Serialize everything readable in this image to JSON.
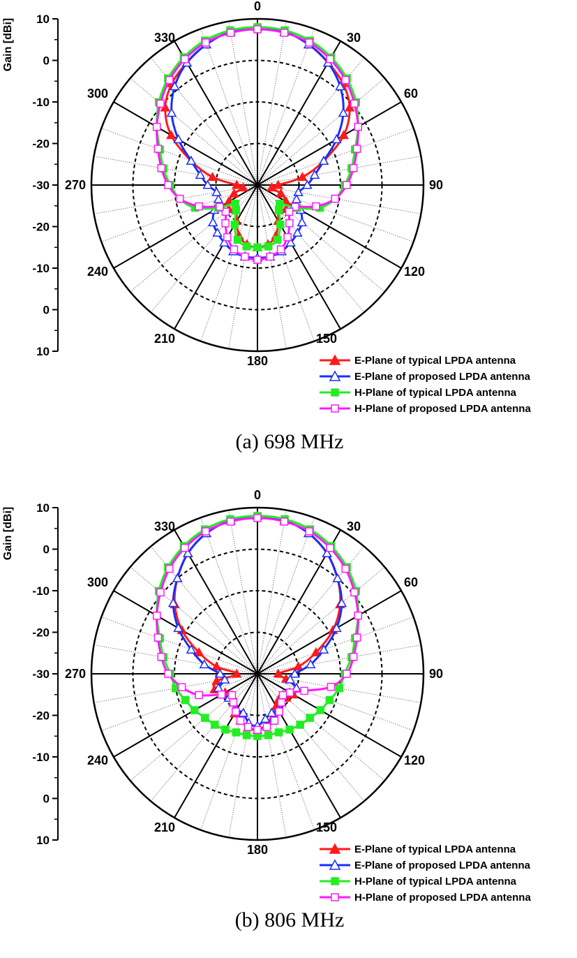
{
  "chart_data": [
    {
      "type": "polar-line",
      "caption": "(a)  698  MHz",
      "ylabel": "Gain [dBi]",
      "radial_range": [
        -30,
        10
      ],
      "radial_ticks": [
        10,
        0,
        -10,
        -20,
        -30
      ],
      "radial_axis_labels": [
        "10",
        "0",
        "-10",
        "-20",
        "-30",
        "-20",
        "-10",
        "0",
        "10"
      ],
      "angle_labels": [
        "0",
        "30",
        "60",
        "90",
        "120",
        "150",
        "180",
        "210",
        "240",
        "270",
        "300",
        "330"
      ],
      "angles": [
        0,
        10,
        20,
        30,
        40,
        50,
        60,
        70,
        80,
        90,
        100,
        110,
        120,
        130,
        140,
        150,
        160,
        170,
        180,
        190,
        200,
        210,
        220,
        230,
        240,
        250,
        260,
        270,
        280,
        290,
        300,
        310,
        320,
        330,
        340,
        350
      ],
      "series": [
        {
          "name": "E-Plane of typical LPDA antenna",
          "color": "#ff1a1a",
          "marker": "triangle",
          "filled": true,
          "values": [
            8,
            7.5,
            6,
            4,
            2,
            -1,
            -6,
            -13,
            -19,
            -25,
            -26.5,
            -24,
            -22,
            -21,
            -22,
            -20,
            -17,
            -15.5,
            -15,
            -15.5,
            -17,
            -20,
            -22,
            -21,
            -22,
            -24,
            -26.5,
            -25,
            -19,
            -13,
            -6,
            -1,
            2,
            4,
            6,
            7.5
          ]
        },
        {
          "name": "E-Plane of proposed LPDA antenna",
          "color": "#1a2eff",
          "marker": "triangle",
          "filled": false,
          "values": [
            8,
            7.5,
            6,
            4,
            1,
            -3,
            -8,
            -13,
            -16,
            -18,
            -20,
            -20,
            -18,
            -16,
            -15,
            -14,
            -13,
            -12.5,
            -12.5,
            -12.5,
            -13,
            -14,
            -15,
            -16,
            -18,
            -20,
            -20,
            -18,
            -16,
            -13,
            -8,
            -3,
            1,
            4,
            6,
            7.5
          ]
        },
        {
          "name": "H-Plane of typical LPDA antenna",
          "color": "#22ee22",
          "marker": "square",
          "filled": true,
          "values": [
            8,
            7.8,
            7,
            5.5,
            3.5,
            1,
            -2,
            -5,
            -7,
            -9,
            -11,
            -14,
            -19,
            -23,
            -22,
            -19,
            -16,
            -15,
            -15,
            -15,
            -16,
            -19,
            -22,
            -23,
            -19,
            -14,
            -11,
            -9,
            -7,
            -5,
            -2,
            1,
            3.5,
            5.5,
            7,
            7.8
          ]
        },
        {
          "name": "H-Plane of proposed LPDA antenna",
          "color": "#ff1aff",
          "marker": "square",
          "filled": false,
          "values": [
            7.5,
            7.2,
            6.5,
            5,
            3,
            0.5,
            -2,
            -4.5,
            -6.5,
            -8.5,
            -11,
            -15,
            -19.5,
            -20,
            -18,
            -15.5,
            -13.5,
            -12.5,
            -12,
            -12.5,
            -13.5,
            -15.5,
            -18,
            -20,
            -19.5,
            -15,
            -11,
            -8.5,
            -6.5,
            -4.5,
            -2,
            0.5,
            3,
            5,
            6.5,
            7.2
          ]
        }
      ]
    },
    {
      "type": "polar-line",
      "caption": "(b)  806  MHz",
      "ylabel": "Gain [dBi]",
      "radial_range": [
        -30,
        10
      ],
      "radial_ticks": [
        10,
        0,
        -10,
        -20,
        -30
      ],
      "radial_axis_labels": [
        "10",
        "0",
        "-10",
        "-20",
        "-30",
        "-20",
        "-10",
        "0",
        "10"
      ],
      "angle_labels": [
        "0",
        "30",
        "60",
        "90",
        "120",
        "150",
        "180",
        "210",
        "240",
        "270",
        "300",
        "330"
      ],
      "angles": [
        0,
        10,
        20,
        30,
        40,
        50,
        60,
        70,
        80,
        90,
        100,
        110,
        120,
        130,
        140,
        150,
        160,
        170,
        180,
        190,
        200,
        210,
        220,
        230,
        240,
        250,
        260,
        270,
        280,
        290,
        300,
        310,
        320,
        330,
        340,
        350
      ],
      "series": [
        {
          "name": "E-Plane of typical LPDA antenna",
          "color": "#ff1a1a",
          "marker": "triangle",
          "filled": true,
          "values": [
            8,
            7.5,
            6,
            3.5,
            0,
            -4,
            -9,
            -15,
            -20,
            -25,
            -23,
            -20,
            -20,
            -21,
            -22,
            -21,
            -19,
            -17.5,
            -16.5,
            -17,
            -18,
            -19,
            -21,
            -22,
            -21,
            -19,
            -20,
            -25,
            -20,
            -15,
            -9,
            -4,
            0,
            3.5,
            6,
            7.5
          ]
        },
        {
          "name": "E-Plane of proposed LPDA antenna",
          "color": "#1a2eff",
          "marker": "triangle",
          "filled": false,
          "values": [
            8,
            7.5,
            6,
            3.5,
            0,
            -3.5,
            -8,
            -13,
            -17,
            -21,
            -22,
            -20,
            -21,
            -22,
            -21,
            -20,
            -20,
            -19,
            -17.5,
            -18,
            -20,
            -20,
            -21,
            -21,
            -20,
            -20,
            -22,
            -21,
            -17,
            -13,
            -8,
            -3.5,
            0,
            3.5,
            6,
            7.5
          ]
        },
        {
          "name": "H-Plane of typical LPDA antenna",
          "color": "#22ee22",
          "marker": "square",
          "filled": true,
          "values": [
            8,
            7.8,
            7,
            5.5,
            3.5,
            1,
            -2,
            -5,
            -7,
            -9,
            -10,
            -11.5,
            -12.5,
            -13.5,
            -14,
            -14.5,
            -15,
            -15,
            -15,
            -15,
            -15,
            -14.5,
            -14,
            -13.5,
            -12.5,
            -11.5,
            -10,
            -9,
            -7,
            -5,
            -2,
            1,
            3.5,
            5.5,
            7,
            7.8
          ]
        },
        {
          "name": "H-Plane of proposed LPDA antenna",
          "color": "#ff1aff",
          "marker": "square",
          "filled": false,
          "values": [
            7.5,
            7.2,
            6.5,
            5,
            3,
            0.5,
            -2,
            -4.5,
            -6.5,
            -8.5,
            -12,
            -18,
            -21,
            -22,
            -21,
            -19.5,
            -18,
            -17,
            -16.5,
            -17,
            -18,
            -19.5,
            -21,
            -22,
            -20,
            -15,
            -11.5,
            -8.5,
            -6.5,
            -4.5,
            -2,
            0.5,
            3,
            5,
            6.5,
            7.2
          ]
        }
      ]
    }
  ]
}
